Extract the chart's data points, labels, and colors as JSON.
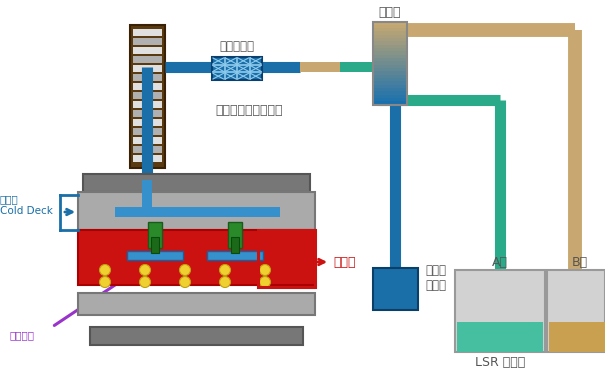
{
  "bg_color": "#ffffff",
  "labels": {
    "mixing_zone": "混合區",
    "static_mixer": "靜態混合器",
    "barrel": "液態矽膠射出機料管",
    "half_mold": "上半模\nCold Deck",
    "heat_mold": "加熱模",
    "cold_nozzle": "針式冷噴",
    "colorant": "染色劑\n添加劑",
    "A_agent": "A劑",
    "B_agent": "B劑",
    "LSR": "LSR 供料機"
  },
  "colors": {
    "gray_dark": "#666666",
    "gray_mid": "#909090",
    "gray_light": "#b8b8b8",
    "gray_lighter": "#d0d0d0",
    "red_hot": "#cc1111",
    "green_dark": "#2a7a2a",
    "blue_main": "#1a6fa8",
    "blue_light": "#4aa0d0",
    "teal": "#2aaa88",
    "tan": "#c8a870",
    "yellow": "#f0d030",
    "purple": "#9933cc",
    "white": "#ffffff",
    "brown_dark": "#5a3a10"
  }
}
